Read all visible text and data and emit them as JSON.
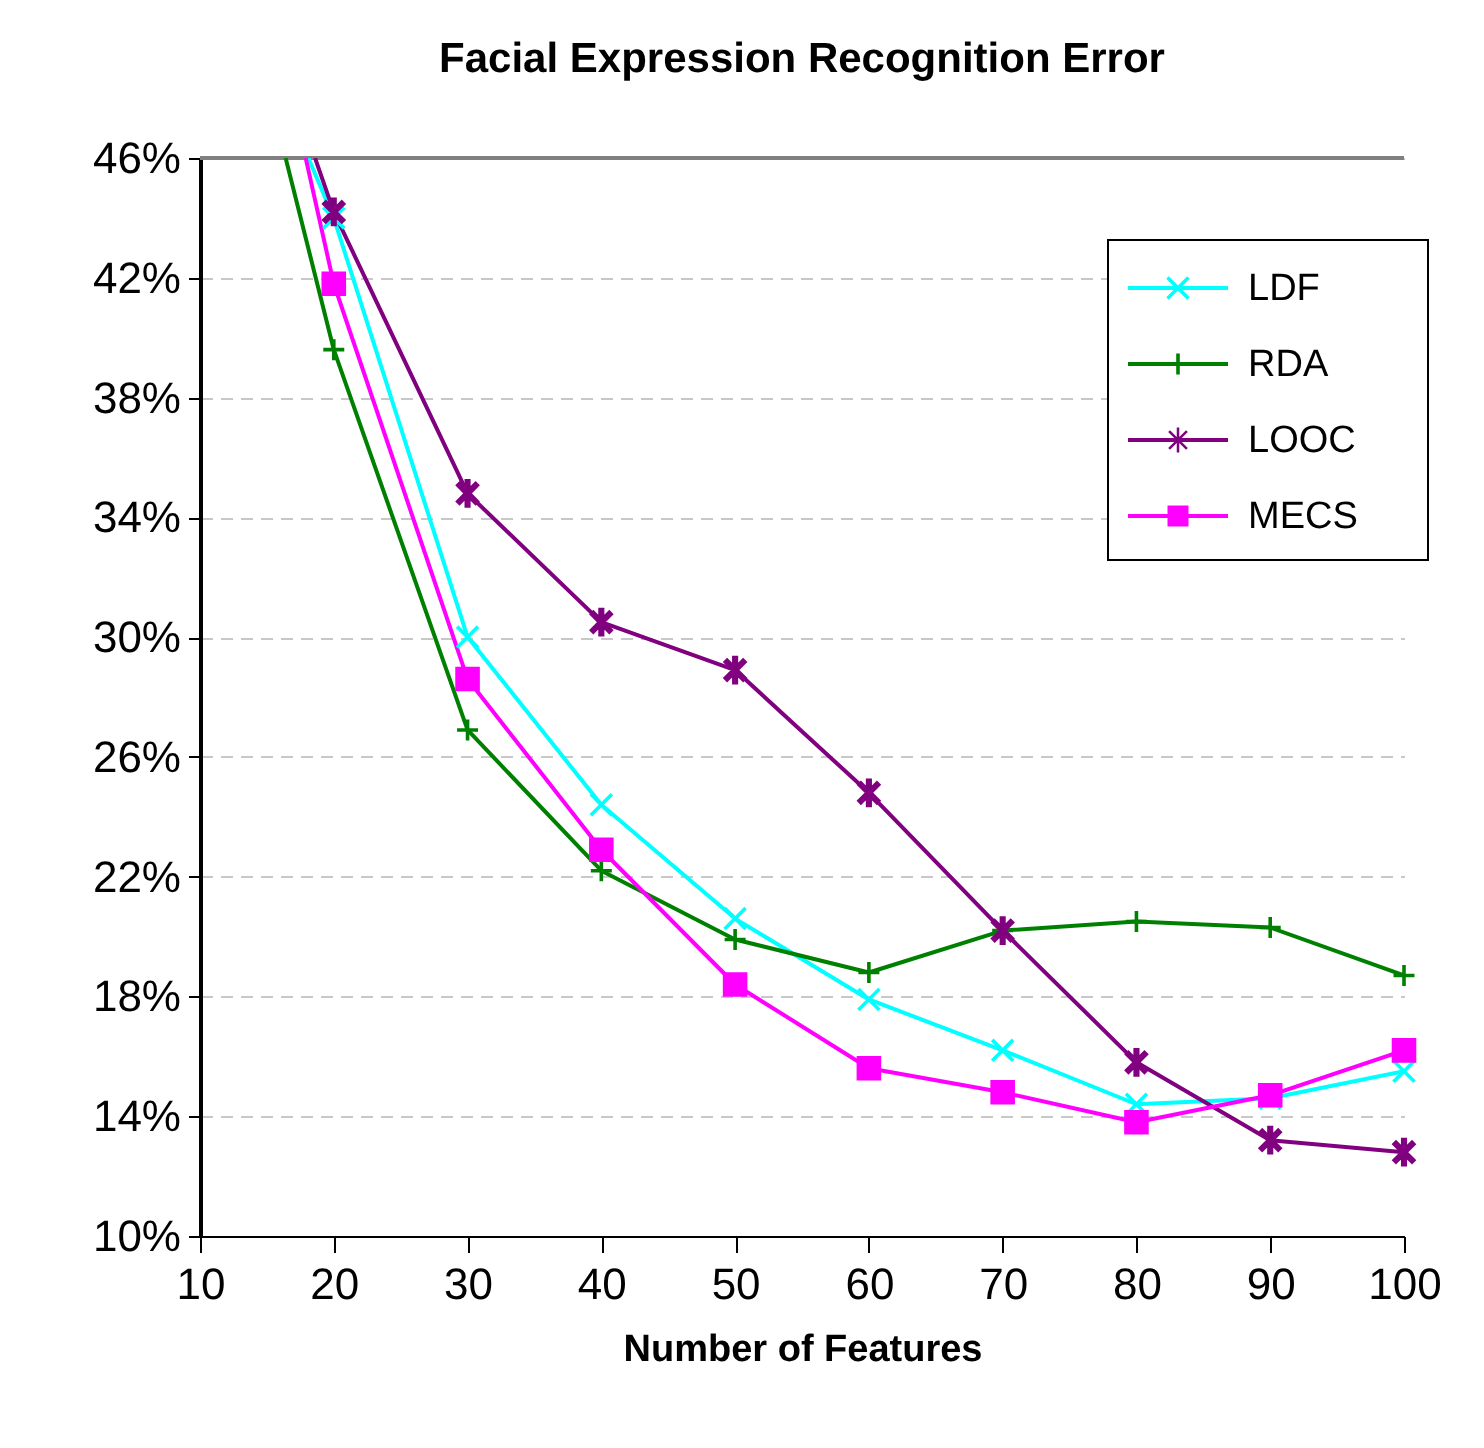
{
  "chart_data": {
    "type": "line",
    "title": "Facial Expression Recognition Error",
    "xlabel": "Number of Features",
    "xlim": [
      10,
      100
    ],
    "xticks": [
      10,
      20,
      30,
      40,
      50,
      60,
      70,
      80,
      90,
      100
    ],
    "ylim": [
      10,
      46
    ],
    "yticks": [
      {
        "value": 10,
        "label": "10%"
      },
      {
        "value": 14,
        "label": "14%"
      },
      {
        "value": 18,
        "label": "18%"
      },
      {
        "value": 22,
        "label": "22%"
      },
      {
        "value": 26,
        "label": "26%"
      },
      {
        "value": 30,
        "label": "30%"
      },
      {
        "value": 34,
        "label": "34%"
      },
      {
        "value": 38,
        "label": "38%"
      },
      {
        "value": 42,
        "label": "42%"
      },
      {
        "value": 46,
        "label": "46%"
      }
    ],
    "grid": "y",
    "legend": "top right",
    "series": [
      {
        "name": "LDF",
        "color": "#00ffff",
        "marker": "x",
        "x": [
          18.1,
          20,
          30,
          40,
          50,
          60,
          70,
          80,
          90,
          100
        ],
        "values": [
          46,
          44.0,
          30.0,
          24.4,
          20.6,
          17.9,
          16.2,
          14.4,
          14.6,
          15.5
        ]
      },
      {
        "name": "RDA",
        "color": "#008000",
        "marker": "cross",
        "x": [
          16.4,
          20,
          30,
          40,
          50,
          60,
          70,
          80,
          90,
          100
        ],
        "values": [
          46,
          39.6,
          26.9,
          22.2,
          19.9,
          18.8,
          20.2,
          20.5,
          20.3,
          18.7
        ]
      },
      {
        "name": "LOOC",
        "color": "#800080",
        "marker": "star",
        "x": [
          18.6,
          20,
          30,
          40,
          50,
          60,
          70,
          80,
          90,
          100
        ],
        "values": [
          46,
          44.2,
          34.8,
          30.5,
          28.9,
          24.8,
          20.2,
          15.8,
          13.2,
          12.8
        ]
      },
      {
        "name": "MECS",
        "color": "#ff00ff",
        "marker": "square",
        "x": [
          17.9,
          20,
          30,
          40,
          50,
          60,
          70,
          80,
          90,
          100
        ],
        "values": [
          46,
          41.8,
          28.6,
          22.9,
          18.4,
          15.6,
          14.8,
          13.8,
          14.7,
          16.2
        ]
      }
    ]
  }
}
